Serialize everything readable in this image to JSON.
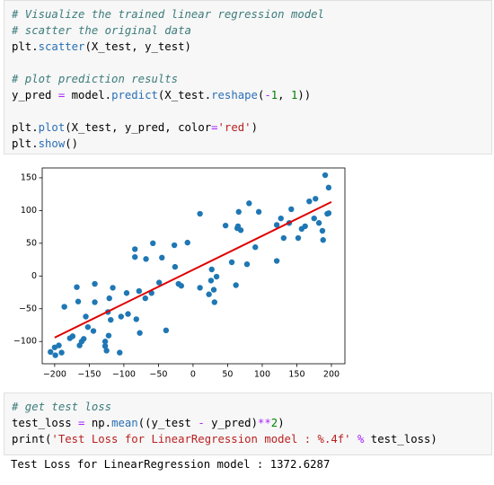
{
  "cells": [
    {
      "blocks": [
        [
          "# Visualize the trained linear regression model",
          "# scatter the original data",
          "plt.scatter(X_test, y_test)"
        ],
        [
          "# plot prediction results",
          "y_pred = model.predict(X_test.reshape(-1, 1))"
        ],
        [
          "plt.plot(X_test, y_pred, color='red')",
          "plt.show()"
        ]
      ]
    },
    {
      "blocks": [
        [
          "# get test loss",
          "test_loss = np.mean((y_test - y_pred)**2)",
          "print('Test Loss for LinearRegression model : %.4f' % test_loss)"
        ]
      ],
      "output": "Test Loss for LinearRegression model : 1372.6287"
    }
  ],
  "chart_data": {
    "type": "scatter",
    "xlim": [
      -218,
      219.5
    ],
    "ylim": [
      -134,
      165
    ],
    "xticks": [
      {
        "value": -200,
        "label": "−200"
      },
      {
        "value": -150,
        "label": "−150"
      },
      {
        "value": -100,
        "label": "−100"
      },
      {
        "value": -50,
        "label": "−50"
      },
      0,
      50,
      100,
      150,
      200
    ],
    "yticks": [
      {
        "value": -100,
        "label": "−100"
      },
      {
        "value": -50,
        "label": "−50"
      },
      0,
      50,
      100,
      150
    ],
    "series": [
      {
        "type": "scatter",
        "color": "#1f77b4",
        "x": [
          191,
          196,
          177,
          168,
          196,
          194,
          142,
          127,
          139,
          175,
          182,
          162,
          157,
          187,
          188,
          121,
          131,
          152,
          66,
          81,
          95,
          64,
          69,
          65,
          47,
          90,
          121,
          78,
          10,
          56,
          62,
          27,
          34,
          26,
          30,
          23,
          31,
          10,
          -26,
          -21,
          -17,
          -8,
          -27,
          -58,
          -45,
          -68,
          -84,
          -84,
          -69,
          -49,
          -60,
          -78,
          -96,
          -116,
          -121,
          -168,
          -142,
          -142,
          -166,
          -186,
          -155,
          -123,
          -104,
          -94,
          -119,
          -152,
          -144,
          -122,
          -127,
          -82,
          -77,
          -39,
          -174,
          -178,
          -158,
          -164,
          -161,
          -127,
          -125,
          -106,
          -200,
          -194,
          -206,
          -190,
          -199
        ],
        "values": [
          154,
          135,
          118,
          114,
          96,
          95,
          102,
          88,
          81,
          88,
          81,
          76,
          72,
          69,
          55,
          78,
          58,
          58,
          98,
          111,
          98,
          73,
          70,
          76,
          77,
          44,
          23,
          18,
          95,
          21,
          -14,
          10,
          -1,
          -7,
          -21,
          -28,
          -40,
          -18,
          14,
          -12,
          -15,
          51,
          47,
          50,
          28,
          26,
          41,
          29,
          -34,
          -10,
          -26,
          -23,
          -26,
          -18,
          -34,
          -17,
          -12,
          -40,
          -39,
          -47,
          -62,
          -55,
          -62,
          -58,
          -67,
          -78,
          -84,
          -91,
          -100,
          -66,
          -87,
          -83,
          -92,
          -95,
          -96,
          -106,
          -100,
          -107,
          -114,
          -117,
          -109,
          -106,
          -116,
          -117,
          -121
        ]
      },
      {
        "type": "line",
        "color": "#e00000",
        "x": [
          -200,
          200
        ],
        "values": [
          -94,
          113
        ]
      }
    ]
  }
}
